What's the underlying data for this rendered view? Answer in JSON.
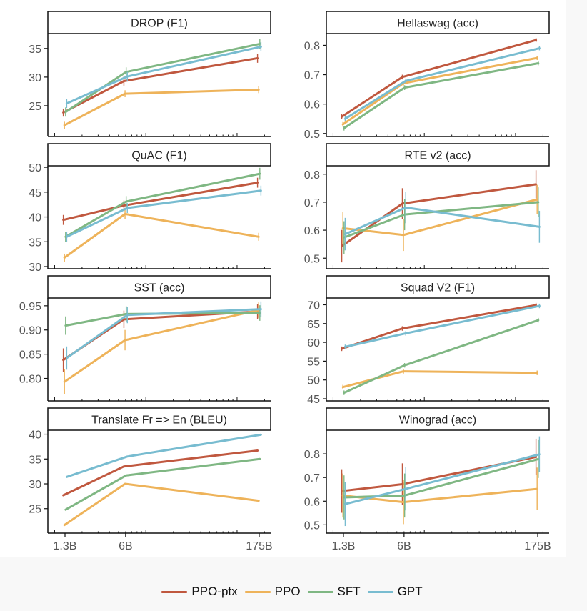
{
  "chart_data": [
    {
      "type": "line",
      "title": "DROP (F1)",
      "categories": [
        "1.3B",
        "6B",
        "175B"
      ],
      "x_params_billions": [
        1.3,
        6,
        175
      ],
      "xscale": "log",
      "yticks": [
        25,
        30,
        35
      ],
      "ylim": [
        20,
        37.6
      ],
      "error_bars": true,
      "series": [
        {
          "name": "PPO-ptx",
          "values": [
            23.8,
            29.3,
            33.3
          ],
          "err": [
            0.7,
            0.8,
            0.8
          ]
        },
        {
          "name": "PPO",
          "values": [
            21.6,
            27.1,
            27.8
          ],
          "err": [
            0.6,
            0.6,
            0.6
          ]
        },
        {
          "name": "SFT",
          "values": [
            23.9,
            30.9,
            35.8
          ],
          "err": [
            0.8,
            0.8,
            0.9
          ]
        },
        {
          "name": "GPT",
          "values": [
            25.4,
            30.1,
            35.3
          ],
          "err": [
            0.8,
            0.8,
            0.8
          ]
        }
      ]
    },
    {
      "type": "line",
      "title": "Hellaswag (acc)",
      "categories": [
        "1.3B",
        "6B",
        "175B"
      ],
      "x_params_billions": [
        1.3,
        6,
        175
      ],
      "xscale": "log",
      "yticks": [
        0.5,
        0.6,
        0.7,
        0.8
      ],
      "ylim": [
        0.497,
        0.84
      ],
      "error_bars": true,
      "series": [
        {
          "name": "PPO-ptx",
          "values": [
            0.557,
            0.692,
            0.818
          ],
          "err": [
            0.008,
            0.008,
            0.007
          ]
        },
        {
          "name": "PPO",
          "values": [
            0.531,
            0.671,
            0.757
          ],
          "err": [
            0.008,
            0.008,
            0.007
          ]
        },
        {
          "name": "SFT",
          "values": [
            0.518,
            0.656,
            0.739
          ],
          "err": [
            0.008,
            0.008,
            0.007
          ]
        },
        {
          "name": "GPT",
          "values": [
            0.55,
            0.679,
            0.79
          ],
          "err": [
            0.008,
            0.008,
            0.007
          ]
        }
      ]
    },
    {
      "type": "line",
      "title": "QuAC (F1)",
      "categories": [
        "1.3B",
        "6B",
        "175B"
      ],
      "x_params_billions": [
        1.3,
        6,
        175
      ],
      "xscale": "log",
      "yticks": [
        30,
        35,
        40,
        45,
        50
      ],
      "ylim": [
        30,
        50.3
      ],
      "error_bars": true,
      "series": [
        {
          "name": "PPO-ptx",
          "values": [
            39.4,
            42.3,
            46.9
          ],
          "err": [
            1.0,
            1.0,
            1.0
          ]
        },
        {
          "name": "PPO",
          "values": [
            31.8,
            40.6,
            36.0
          ],
          "err": [
            0.8,
            1.0,
            0.8
          ]
        },
        {
          "name": "SFT",
          "values": [
            36.0,
            43.1,
            48.7
          ],
          "err": [
            1.0,
            1.1,
            1.2
          ]
        },
        {
          "name": "GPT",
          "values": [
            36.0,
            41.8,
            45.3
          ],
          "err": [
            1.0,
            1.0,
            1.0
          ]
        }
      ]
    },
    {
      "type": "line",
      "title": "RTE v2 (acc)",
      "categories": [
        "1.3B",
        "6B",
        "175B"
      ],
      "x_params_billions": [
        1.3,
        6,
        175
      ],
      "xscale": "log",
      "yticks": [
        0.5,
        0.6,
        0.7,
        0.8
      ],
      "ylim": [
        0.47,
        0.83
      ],
      "error_bars": true,
      "series": [
        {
          "name": "PPO-ptx",
          "values": [
            0.543,
            0.695,
            0.764
          ],
          "err": [
            0.058,
            0.055,
            0.05
          ]
        },
        {
          "name": "PPO",
          "values": [
            0.607,
            0.583,
            0.71
          ],
          "err": [
            0.057,
            0.057,
            0.052
          ]
        },
        {
          "name": "SFT",
          "values": [
            0.574,
            0.656,
            0.7
          ],
          "err": [
            0.058,
            0.056,
            0.053
          ]
        },
        {
          "name": "GPT",
          "values": [
            0.586,
            0.681,
            0.612
          ],
          "err": [
            0.058,
            0.056,
            0.057
          ]
        }
      ]
    },
    {
      "type": "line",
      "title": "SST (acc)",
      "categories": [
        "1.3B",
        "6B",
        "175B"
      ],
      "x_params_billions": [
        1.3,
        6,
        175
      ],
      "xscale": "log",
      "yticks": [
        0.8,
        0.85,
        0.9,
        0.95
      ],
      "ylim": [
        0.758,
        0.966
      ],
      "error_bars": true,
      "series": [
        {
          "name": "PPO-ptx",
          "values": [
            0.838,
            0.922,
            0.938
          ],
          "err": [
            0.024,
            0.018,
            0.016
          ]
        },
        {
          "name": "PPO",
          "values": [
            0.793,
            0.879,
            0.941
          ],
          "err": [
            0.026,
            0.021,
            0.016
          ]
        },
        {
          "name": "SFT",
          "values": [
            0.909,
            0.933,
            0.935
          ],
          "err": [
            0.019,
            0.016,
            0.016
          ]
        },
        {
          "name": "GPT",
          "values": [
            0.842,
            0.931,
            0.943
          ],
          "err": [
            0.024,
            0.017,
            0.016
          ]
        }
      ]
    },
    {
      "type": "line",
      "title": "Squad V2 (F1)",
      "categories": [
        "1.3B",
        "6B",
        "175B"
      ],
      "x_params_billions": [
        1.3,
        6,
        175
      ],
      "xscale": "log",
      "yticks": [
        45,
        50,
        55,
        60,
        65,
        70
      ],
      "ylim": [
        45,
        71.8
      ],
      "error_bars": true,
      "series": [
        {
          "name": "PPO-ptx",
          "values": [
            58.3,
            63.7,
            69.9
          ],
          "err": [
            0.6,
            0.6,
            0.6
          ]
        },
        {
          "name": "PPO",
          "values": [
            48.1,
            52.3,
            51.9
          ],
          "err": [
            0.6,
            0.6,
            0.6
          ]
        },
        {
          "name": "SFT",
          "values": [
            46.6,
            53.9,
            65.9
          ],
          "err": [
            0.6,
            0.6,
            0.6
          ]
        },
        {
          "name": "GPT",
          "values": [
            58.8,
            62.4,
            69.7
          ],
          "err": [
            0.6,
            0.6,
            0.6
          ]
        }
      ]
    },
    {
      "type": "line",
      "title": "Translate Fr => En (BLEU)",
      "categories": [
        "1.3B",
        "6B",
        "175B"
      ],
      "x_params_billions": [
        1.3,
        6,
        175
      ],
      "xscale": "log",
      "yticks": [
        25,
        30,
        35,
        40
      ],
      "ylim": [
        20.5,
        40.8
      ],
      "error_bars": false,
      "series": [
        {
          "name": "PPO-ptx",
          "values": [
            27.7,
            33.5,
            36.7
          ]
        },
        {
          "name": "PPO",
          "values": [
            21.7,
            30.0,
            26.6
          ]
        },
        {
          "name": "SFT",
          "values": [
            24.8,
            31.7,
            35.0
          ]
        },
        {
          "name": "GPT",
          "values": [
            31.4,
            35.5,
            39.9
          ]
        }
      ]
    },
    {
      "type": "line",
      "title": "Winograd (acc)",
      "categories": [
        "1.3B",
        "6B",
        "175B"
      ],
      "x_params_billions": [
        1.3,
        6,
        175
      ],
      "xscale": "log",
      "yticks": [
        0.5,
        0.6,
        0.7,
        0.8
      ],
      "ylim": [
        0.474,
        0.9
      ],
      "error_bars": true,
      "series": [
        {
          "name": "PPO-ptx",
          "values": [
            0.643,
            0.672,
            0.787
          ],
          "err": [
            0.092,
            0.088,
            0.077
          ]
        },
        {
          "name": "PPO",
          "values": [
            0.624,
            0.596,
            0.652
          ],
          "err": [
            0.093,
            0.093,
            0.09
          ]
        },
        {
          "name": "SFT",
          "values": [
            0.616,
            0.624,
            0.778
          ],
          "err": [
            0.093,
            0.093,
            0.08
          ]
        },
        {
          "name": "GPT",
          "values": [
            0.588,
            0.652,
            0.798
          ],
          "err": [
            0.093,
            0.091,
            0.076
          ]
        }
      ]
    }
  ],
  "legend": {
    "placement": "bottom-center",
    "items": [
      {
        "label": "PPO-ptx",
        "color": "#c0583f"
      },
      {
        "label": "PPO",
        "color": "#eeb35a"
      },
      {
        "label": "SFT",
        "color": "#7fb783"
      },
      {
        "label": "GPT",
        "color": "#78bcd0"
      }
    ]
  },
  "x_tick_labels": [
    "1.3B",
    "6B",
    "175B"
  ]
}
